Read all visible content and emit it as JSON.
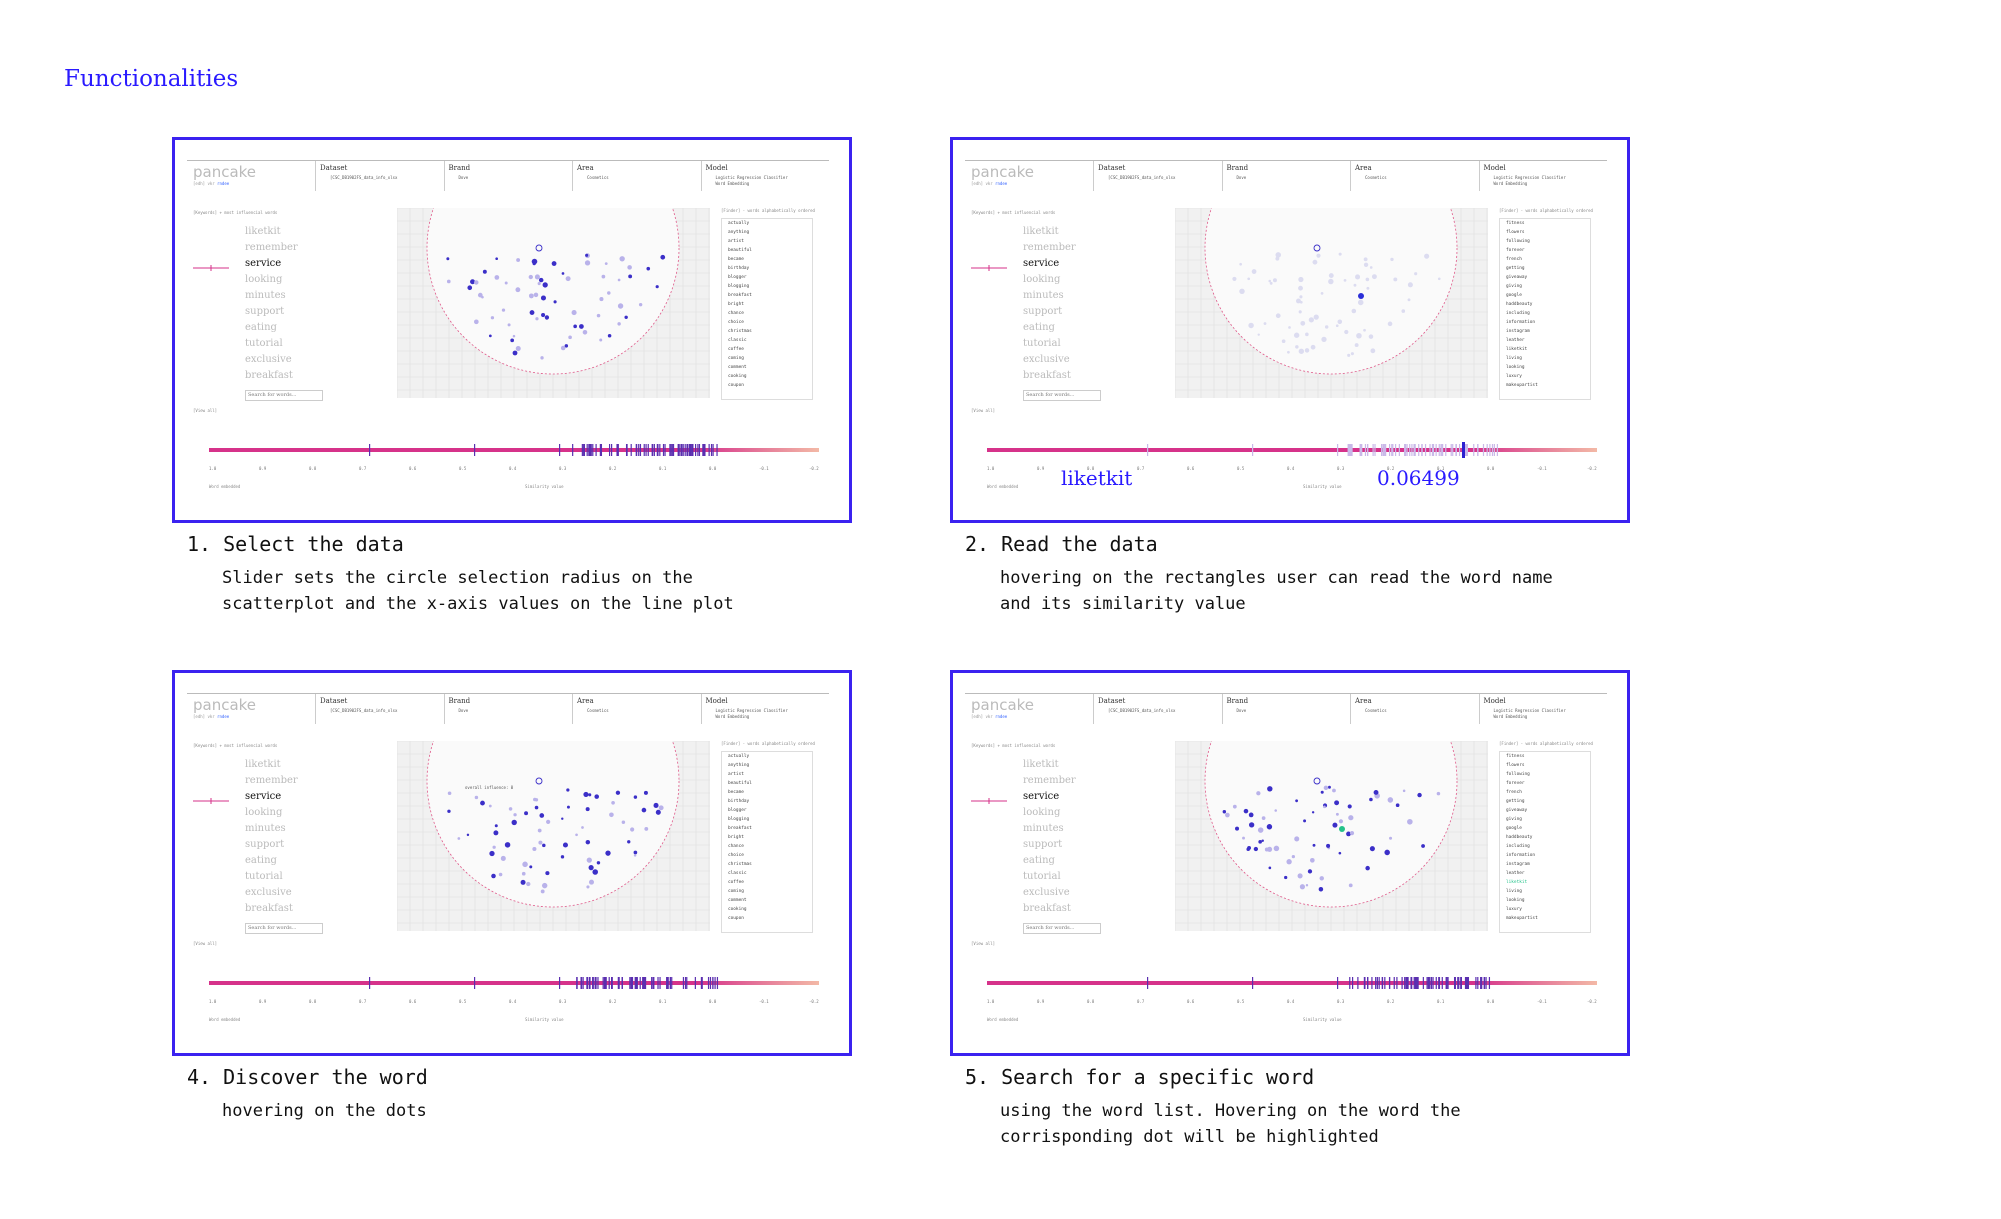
{
  "page": {
    "title": "Functionalities"
  },
  "app": {
    "logo": "pancake",
    "logo_sub_prefix": "[edh] vkr",
    "logo_sub_link": "rndee",
    "dataset_label": "Dataset",
    "dataset_value": "[CSC_DB1902FS_data_info_xlsx",
    "brand_label": "Brand",
    "brand_value": "Dove",
    "area_label": "Area",
    "area_value": "Cosmetics",
    "model_label": "Model",
    "model_value_1": "Logistic Regression Classifier",
    "model_value_2": "Word Embedding",
    "left_note": "[Keywords] + most influencial words",
    "list_note": "[Finder] - words alphabetically ordered",
    "words": [
      "liketkit",
      "remember",
      "service",
      "looking",
      "minutes",
      "support",
      "eating",
      "tutorial",
      "exclusive",
      "breakfast"
    ],
    "active_word": "service",
    "search_placeholder": "Search for words...",
    "view_all": "[View all]",
    "word_axis_label": "Word embedded",
    "sim_axis_label": "Similarity value",
    "ticks": [
      "1.0",
      "0.9",
      "0.8",
      "0.7",
      "0.6",
      "0.5",
      "0.4",
      "0.3",
      "0.2",
      "0.1",
      "0.0",
      "-0.1",
      "-0.2"
    ],
    "mini_slider_labels": [
      "-0.5",
      "0.5"
    ],
    "list_a": [
      "actually",
      "anything",
      "artist",
      "beautiful",
      "became",
      "birthday",
      "blogger",
      "blogging",
      "breakfast",
      "bright",
      "chance",
      "choice",
      "christmas",
      "classic",
      "coffee",
      "coming",
      "comment",
      "cooking",
      "coupon"
    ],
    "list_b": [
      "fitness",
      "flowers",
      "following",
      "forever",
      "french",
      "getting",
      "giveaway",
      "giving",
      "google",
      "haddbeauty",
      "including",
      "information",
      "instagram",
      "leather",
      "liketkit",
      "living",
      "looking",
      "luxury",
      "makeupartist"
    ],
    "highlight_word": "liketkit",
    "hover_tooltip": "overall influence: 0"
  },
  "panels": [
    {
      "number": "1.",
      "title": "Select the data",
      "desc_1": "Slider sets the circle selection radius on the",
      "desc_2": "scatterplot and the x-axis values on the line plot"
    },
    {
      "number": "2.",
      "title": "Read the data",
      "desc_1": "hovering on the rectangles user can read the word name",
      "desc_2": "and its similarity value",
      "readout_word": "liketkit",
      "readout_value": "0.06499"
    },
    {
      "number": "4.",
      "title": "Discover the word",
      "desc_1": "hovering on the dots",
      "desc_2": ""
    },
    {
      "number": "5.",
      "title": "Search for a specific word",
      "desc_1": "using the word list. Hovering on the word the",
      "desc_2": "corrisponding dot will be highlighted"
    }
  ],
  "colors": {
    "accent": "#3b22f0",
    "bar": "#d6328a",
    "rect": "#5a2fb0",
    "highlight": "#24c28a"
  }
}
